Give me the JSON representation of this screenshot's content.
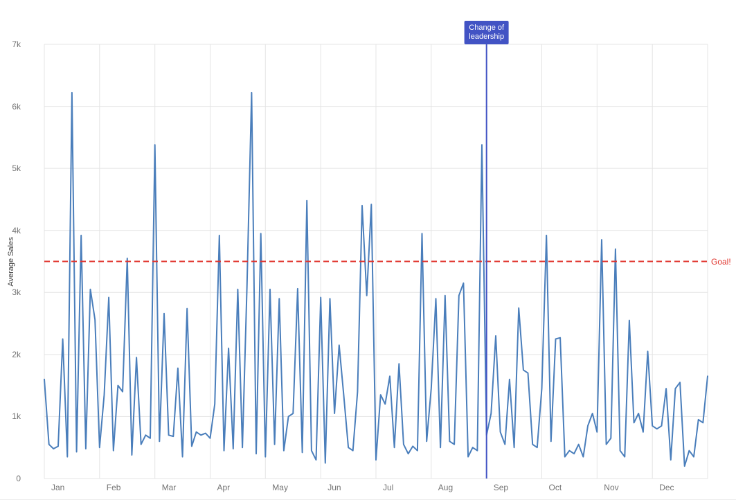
{
  "chart_data": {
    "type": "line",
    "title": "",
    "xlabel": "",
    "ylabel": "Average Sales",
    "x_categories": [
      "Jan",
      "Feb",
      "Mar",
      "Apr",
      "May",
      "Jun",
      "Jul",
      "Aug",
      "Sep",
      "Oct",
      "Nov",
      "Dec"
    ],
    "y_ticks": [
      "0",
      "1k",
      "2k",
      "3k",
      "4k",
      "5k",
      "6k",
      "7k"
    ],
    "y_tick_values": [
      0,
      1000,
      2000,
      3000,
      4000,
      5000,
      6000,
      7000
    ],
    "ylim": [
      0,
      7000
    ],
    "grid": true,
    "grid_color": "#e4e4e4",
    "axis_text_color": "#737373",
    "legend": "none",
    "series": [
      {
        "name": "Average Sales",
        "color": "#4a7ebb",
        "values": [
          1600,
          550,
          480,
          520,
          2250,
          350,
          6220,
          430,
          3920,
          480,
          3050,
          2560,
          500,
          1350,
          2920,
          450,
          1500,
          1400,
          3550,
          380,
          1950,
          550,
          700,
          650,
          5380,
          600,
          2660,
          700,
          680,
          1780,
          350,
          2740,
          520,
          750,
          700,
          730,
          650,
          1200,
          3920,
          450,
          2100,
          480,
          3050,
          500,
          3100,
          6220,
          400,
          3950,
          350,
          3050,
          550,
          2900,
          450,
          1000,
          1050,
          3060,
          420,
          4480,
          450,
          300,
          2920,
          250,
          2900,
          1050,
          2150,
          1350,
          500,
          450,
          1400,
          4400,
          2950,
          4420,
          300,
          1350,
          1200,
          1650,
          500,
          1850,
          550,
          400,
          520,
          450,
          3950,
          600,
          1450,
          2900,
          500,
          2950,
          600,
          550,
          2950,
          3150,
          350,
          500,
          450,
          5380,
          700,
          1050,
          2300,
          750,
          550,
          1600,
          500,
          2750,
          1750,
          1700,
          550,
          500,
          1450,
          3920,
          600,
          2250,
          2270,
          350,
          450,
          400,
          550,
          350,
          850,
          1050,
          750,
          3850,
          550,
          650,
          3700,
          450,
          350,
          2550,
          900,
          1050,
          750,
          2050,
          850,
          800,
          850,
          1450,
          300,
          1450,
          1550,
          200,
          450,
          350,
          950,
          900,
          1650
        ]
      }
    ],
    "reference_lines": [
      {
        "orientation": "horizontal",
        "value": 3500,
        "label": "Goal!",
        "color": "#e0332c",
        "style": "dashed"
      }
    ],
    "annotations": [
      {
        "type": "vertical-line",
        "x_category": "Sep",
        "label": "Change of leadership",
        "label_lines": [
          "Change of",
          "leadership"
        ],
        "color": "#4253c4"
      }
    ]
  }
}
